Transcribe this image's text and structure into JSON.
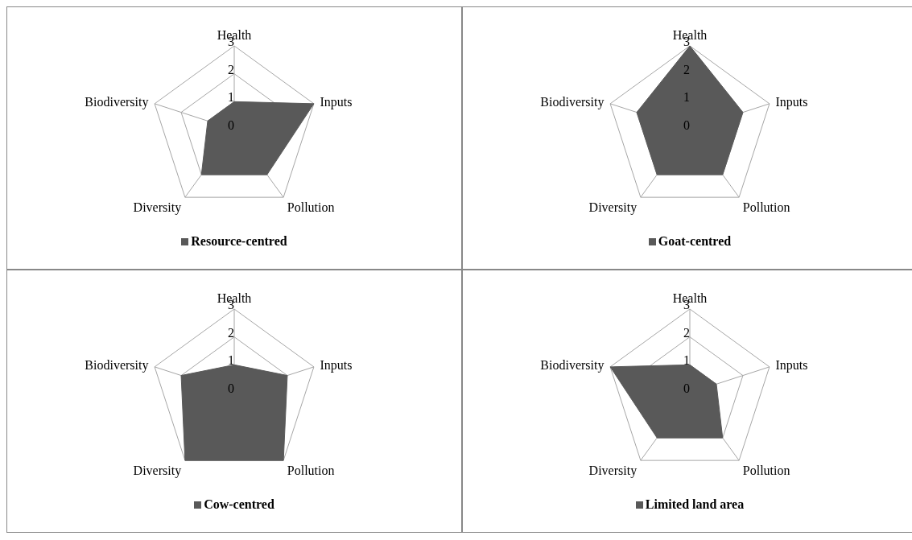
{
  "chart_data": [
    {
      "type": "radar",
      "categories": [
        "Health",
        "Inputs",
        "Pollution",
        "Diversity",
        "Biodiversity"
      ],
      "series": [
        {
          "name": "Resource-centred",
          "color": "#595959",
          "values": [
            1,
            3,
            2,
            2,
            1
          ]
        }
      ],
      "ylim": [
        0,
        3
      ],
      "yticks": [
        0,
        1,
        2,
        3
      ],
      "grid": true,
      "legend": "bottom"
    },
    {
      "type": "radar",
      "categories": [
        "Health",
        "Inputs",
        "Pollution",
        "Diversity",
        "Biodiversity"
      ],
      "series": [
        {
          "name": "Goat-centred",
          "color": "#595959",
          "values": [
            3,
            2,
            2,
            2,
            2
          ]
        }
      ],
      "ylim": [
        0,
        3
      ],
      "yticks": [
        0,
        1,
        2,
        3
      ],
      "grid": true,
      "legend": "bottom"
    },
    {
      "type": "radar",
      "categories": [
        "Health",
        "Inputs",
        "Pollution",
        "Diversity",
        "Biodiversity"
      ],
      "series": [
        {
          "name": "Cow-centred",
          "color": "#595959",
          "values": [
            1,
            2,
            3,
            3,
            2
          ]
        }
      ],
      "ylim": [
        0,
        3
      ],
      "yticks": [
        0,
        1,
        2,
        3
      ],
      "grid": true,
      "legend": "bottom"
    },
    {
      "type": "radar",
      "categories": [
        "Health",
        "Inputs",
        "Pollution",
        "Diversity",
        "Biodiversity"
      ],
      "series": [
        {
          "name": "Limited land area",
          "color": "#595959",
          "values": [
            1,
            1,
            2,
            2,
            3
          ]
        }
      ],
      "ylim": [
        0,
        3
      ],
      "yticks": [
        0,
        1,
        2,
        3
      ],
      "grid": true,
      "legend": "bottom"
    }
  ]
}
